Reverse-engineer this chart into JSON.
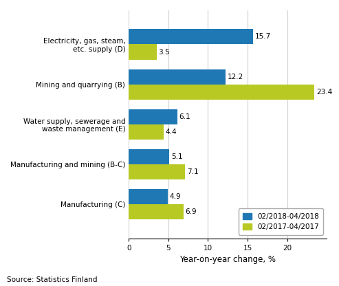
{
  "categories": [
    "Electricity, gas, steam,\netc. supply (D)",
    "Mining and quarrying (B)",
    "Water supply, sewerage and\nwaste management (E)",
    "Manufacturing and mining (B-C)",
    "Manufacturing (C)"
  ],
  "series1_label": "02/2018-04/2018",
  "series2_label": "02/2017-04/2017",
  "series1_values": [
    15.7,
    12.2,
    6.1,
    5.1,
    4.9
  ],
  "series2_values": [
    3.5,
    23.4,
    4.4,
    7.1,
    6.9
  ],
  "series1_color": "#1f78b4",
  "series2_color": "#b8c924",
  "xlim": [
    0,
    25
  ],
  "xticks": [
    0,
    5,
    10,
    15,
    20
  ],
  "xlabel": "Year-on-year change, %",
  "source": "Source: Statistics Finland",
  "bar_height": 0.38,
  "value_fontsize": 7.5,
  "label_fontsize": 7.5,
  "xlabel_fontsize": 8.5,
  "source_fontsize": 7.5,
  "legend_fontsize": 7.5,
  "background_color": "#ffffff"
}
